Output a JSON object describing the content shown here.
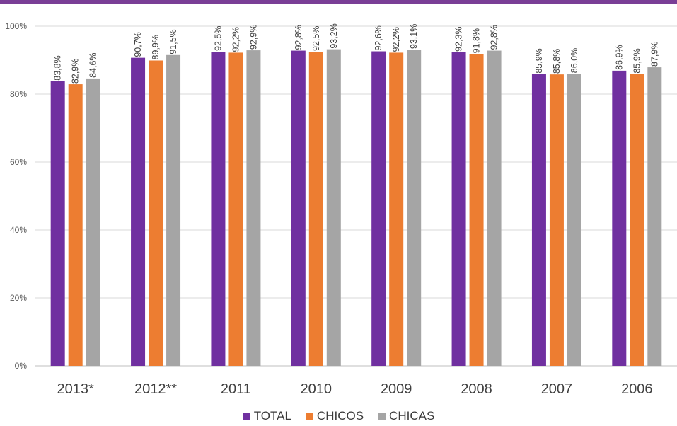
{
  "chart_data": {
    "type": "bar",
    "title": "",
    "xlabel": "",
    "ylabel": "",
    "categories": [
      "2013*",
      "2012**",
      "2011",
      "2010",
      "2009",
      "2008",
      "2007",
      "2006"
    ],
    "series": [
      {
        "name": "TOTAL",
        "color": "#7030a0",
        "values": [
          83.8,
          90.7,
          92.5,
          92.8,
          92.6,
          92.3,
          85.9,
          86.9
        ],
        "labels": [
          "83,8%",
          "90,7%",
          "92,5%",
          "92,8%",
          "92,6%",
          "92,3%",
          "85,9%",
          "86,9%"
        ]
      },
      {
        "name": "CHICOS",
        "color": "#ed7d31",
        "values": [
          82.9,
          89.9,
          92.2,
          92.5,
          92.2,
          91.8,
          85.8,
          85.9
        ],
        "labels": [
          "82,9%",
          "89,9%",
          "92,2%",
          "92,5%",
          "92,2%",
          "91,8%",
          "85,8%",
          "85,9%"
        ]
      },
      {
        "name": "CHICAS",
        "color": "#a5a5a5",
        "values": [
          84.6,
          91.5,
          92.9,
          93.2,
          93.1,
          92.8,
          86.0,
          87.9
        ],
        "labels": [
          "84,6%",
          "91,5%",
          "92,9%",
          "93,2%",
          "93,1%",
          "92,8%",
          "86,0%",
          "87,9%"
        ]
      }
    ],
    "ylim": [
      0,
      100
    ],
    "yticks": [
      0,
      20,
      40,
      60,
      80,
      100
    ],
    "ytick_labels": [
      "0%",
      "20%",
      "40%",
      "60%",
      "80%",
      "100%"
    ],
    "grid": true,
    "legend_position": "bottom",
    "accent_color": "#7a3e96"
  }
}
